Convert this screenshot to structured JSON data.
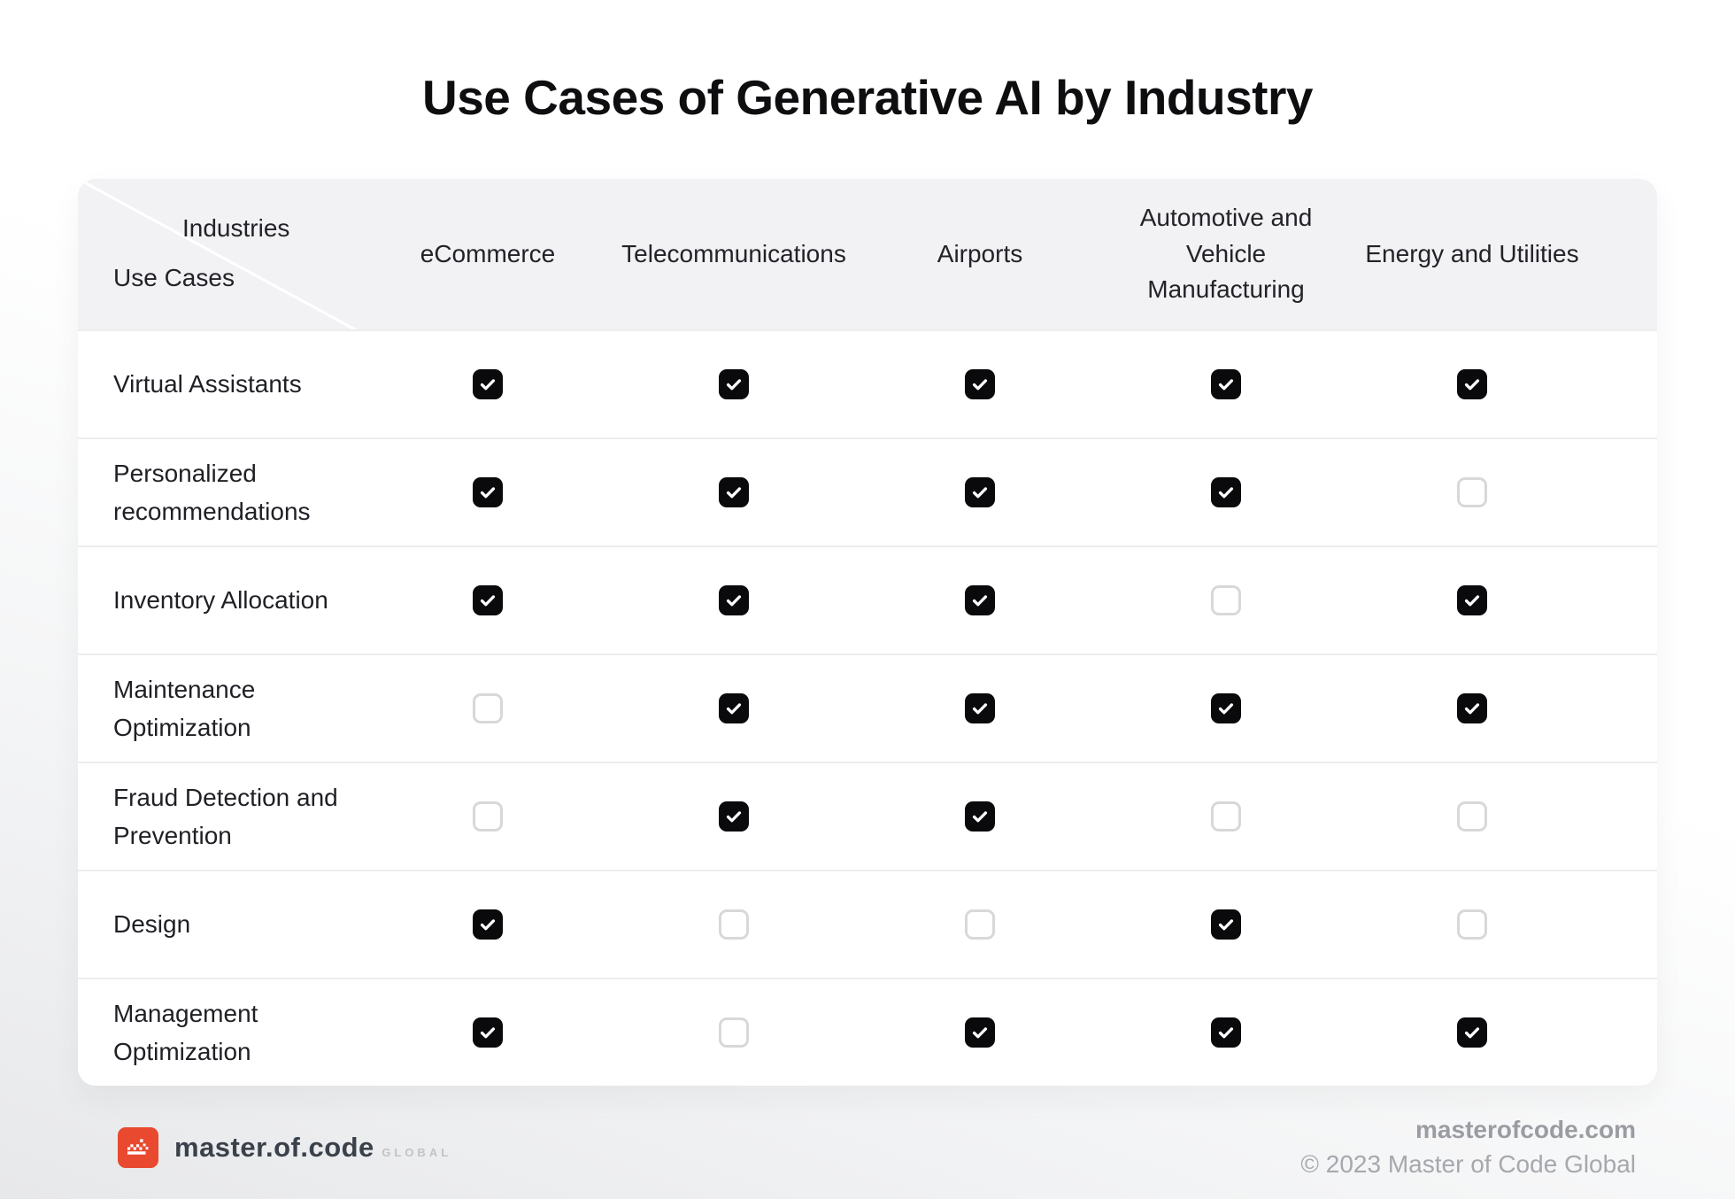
{
  "title": "Use Cases of Generative AI by Industry",
  "chart_data": {
    "type": "table",
    "title": "Use Cases of Generative AI by Industry",
    "corner": {
      "column_axis_label": "Industries",
      "row_axis_label": "Use Cases"
    },
    "columns": [
      "eCommerce",
      "Telecommunications",
      "Airports",
      "Automotive and Vehicle Manufacturing",
      "Energy and Utilities"
    ],
    "rows": [
      {
        "use_case": "Virtual Assistants",
        "checks": [
          true,
          true,
          true,
          true,
          true
        ]
      },
      {
        "use_case": "Personalized recommendations",
        "checks": [
          true,
          true,
          true,
          true,
          false
        ]
      },
      {
        "use_case": "Inventory Allocation",
        "checks": [
          true,
          true,
          true,
          false,
          true
        ]
      },
      {
        "use_case": "Maintenance Optimization",
        "checks": [
          false,
          true,
          true,
          true,
          true
        ]
      },
      {
        "use_case": "Fraud Detection and Prevention",
        "checks": [
          false,
          true,
          true,
          false,
          false
        ]
      },
      {
        "use_case": "Design",
        "checks": [
          true,
          false,
          false,
          true,
          false
        ]
      },
      {
        "use_case": "Management Optimization",
        "checks": [
          true,
          false,
          true,
          true,
          true
        ]
      }
    ]
  },
  "footer": {
    "brand_name": "master.of.code",
    "brand_suffix": "GLOBAL",
    "website": "masterofcode.com",
    "copyright": "© 2023 Master of Code Global"
  },
  "colors": {
    "header_bg": "#F2F2F4",
    "checked_box": "#0A0A0C",
    "unchecked_border": "#D8D8DA",
    "brand_red": "#E8492F",
    "footer_text": "#9B9CA1"
  }
}
